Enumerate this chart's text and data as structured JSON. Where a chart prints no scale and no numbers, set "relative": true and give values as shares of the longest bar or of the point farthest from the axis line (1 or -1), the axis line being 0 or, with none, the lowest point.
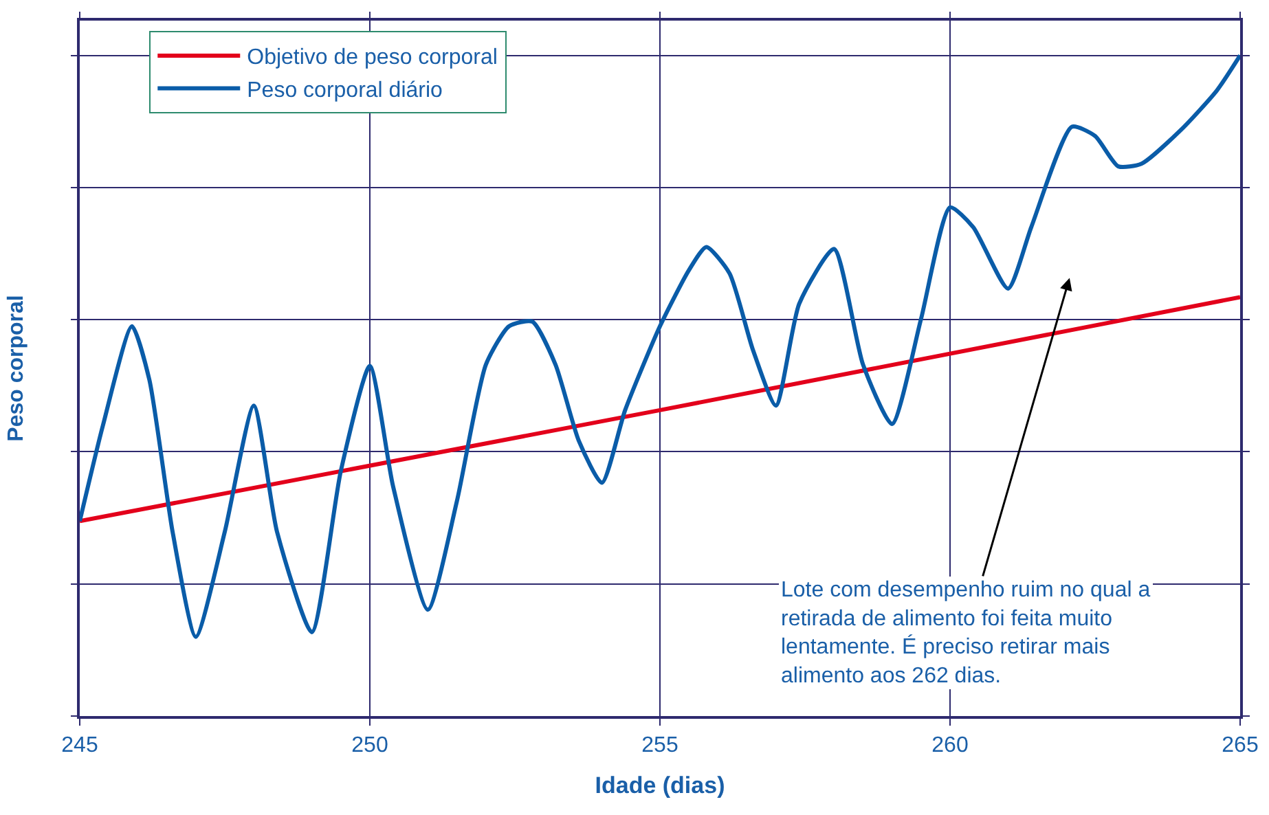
{
  "chart_data": {
    "type": "line",
    "relative": true,
    "xlabel": "Idade (dias)",
    "ylabel": "Peso corporal",
    "xlim": [
      245,
      265
    ],
    "xticks": [
      245,
      250,
      255,
      260,
      265
    ],
    "grid": true,
    "legend": "top left",
    "line_style": "solid",
    "marker": "none",
    "series": [
      {
        "name": "Objetivo de peso corporal",
        "color": "#e3001b",
        "x": [
          245,
          255,
          265
        ],
        "values": [
          0.295,
          0.463,
          0.634
        ]
      },
      {
        "name": "Peso corporal diário",
        "color": "#0a5ca8",
        "x": [
          245.0,
          245.4,
          245.9,
          246.2,
          246.6,
          247.0,
          247.5,
          248.0,
          248.4,
          249.0,
          249.5,
          250.0,
          250.4,
          251.0,
          251.5,
          252.0,
          252.4,
          252.8,
          253.2,
          253.6,
          254.0,
          254.4,
          255.0,
          255.5,
          255.8,
          256.2,
          256.6,
          257.0,
          257.4,
          258.0,
          258.5,
          259.0,
          259.5,
          260.0,
          260.4,
          261.0,
          261.4,
          262.1,
          262.5,
          262.9,
          263.3,
          264.0,
          264.6,
          265.0
        ],
        "values": [
          0.295,
          0.44,
          0.59,
          0.509,
          0.279,
          0.12,
          0.279,
          0.47,
          0.279,
          0.127,
          0.371,
          0.53,
          0.348,
          0.161,
          0.325,
          0.532,
          0.59,
          0.597,
          0.532,
          0.417,
          0.353,
          0.463,
          0.59,
          0.675,
          0.71,
          0.67,
          0.555,
          0.47,
          0.624,
          0.707,
          0.532,
          0.442,
          0.601,
          0.77,
          0.74,
          0.647,
          0.74,
          0.892,
          0.878,
          0.832,
          0.836,
          0.889,
          0.947,
          1.0
        ]
      }
    ],
    "annotations": [
      "Lote com desempenho ruim no qual a\nretirada de alimento foi feita muito\nlentamente. É preciso retirar mais\nalimento aos 262 dias."
    ]
  }
}
